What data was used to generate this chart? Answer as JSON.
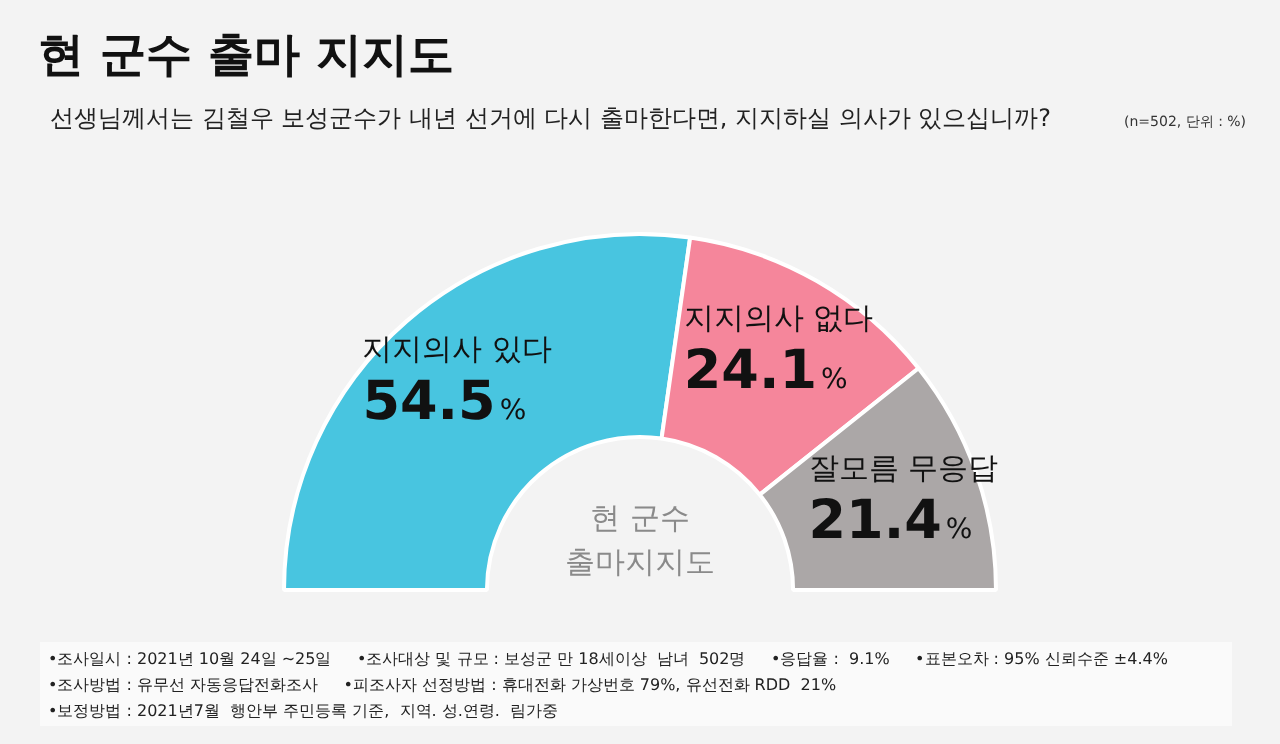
{
  "chart_data": {
    "type": "donut",
    "title": "현 군수 출마 지지도",
    "subtitle": "선생님께서는 김철우 보성군수가 내년 선거에 다시 출마한다면, 지지하실 의사가 있으십니까?",
    "categories": [
      "지지의사 있다",
      "지지의사 없다",
      "잘모름 무응답"
    ],
    "values": [
      54.5,
      24.1,
      21.4
    ],
    "value_labels": [
      "54.5%",
      "24.1%",
      "21.4%"
    ],
    "colors": [
      "#48c5e0",
      "#f5869b",
      "#aba7a7"
    ],
    "legend": false,
    "annotations": [
      "(n=502, 단위 : %)",
      "현 군수\n출마지지도",
      "•조사일시 : 2021년 10월 24일 ~25일",
      "•조사대상 및 규모 : 보성군 만 18세이상  남녀  502명",
      "•응답율 :  9.1%",
      "•표본오차 : 95% 신뢰수준 ±4.4%",
      "•조사방법 : 유무선 자동응답전화조사",
      "•피조사자 선정방법 : 휴대전화 가상번호 79%, 유선전화 RDD  21%",
      "•보정방법 : 2021년7월  행안부 주민등록 기준,  지역. 성.연령.  림가중"
    ]
  }
}
